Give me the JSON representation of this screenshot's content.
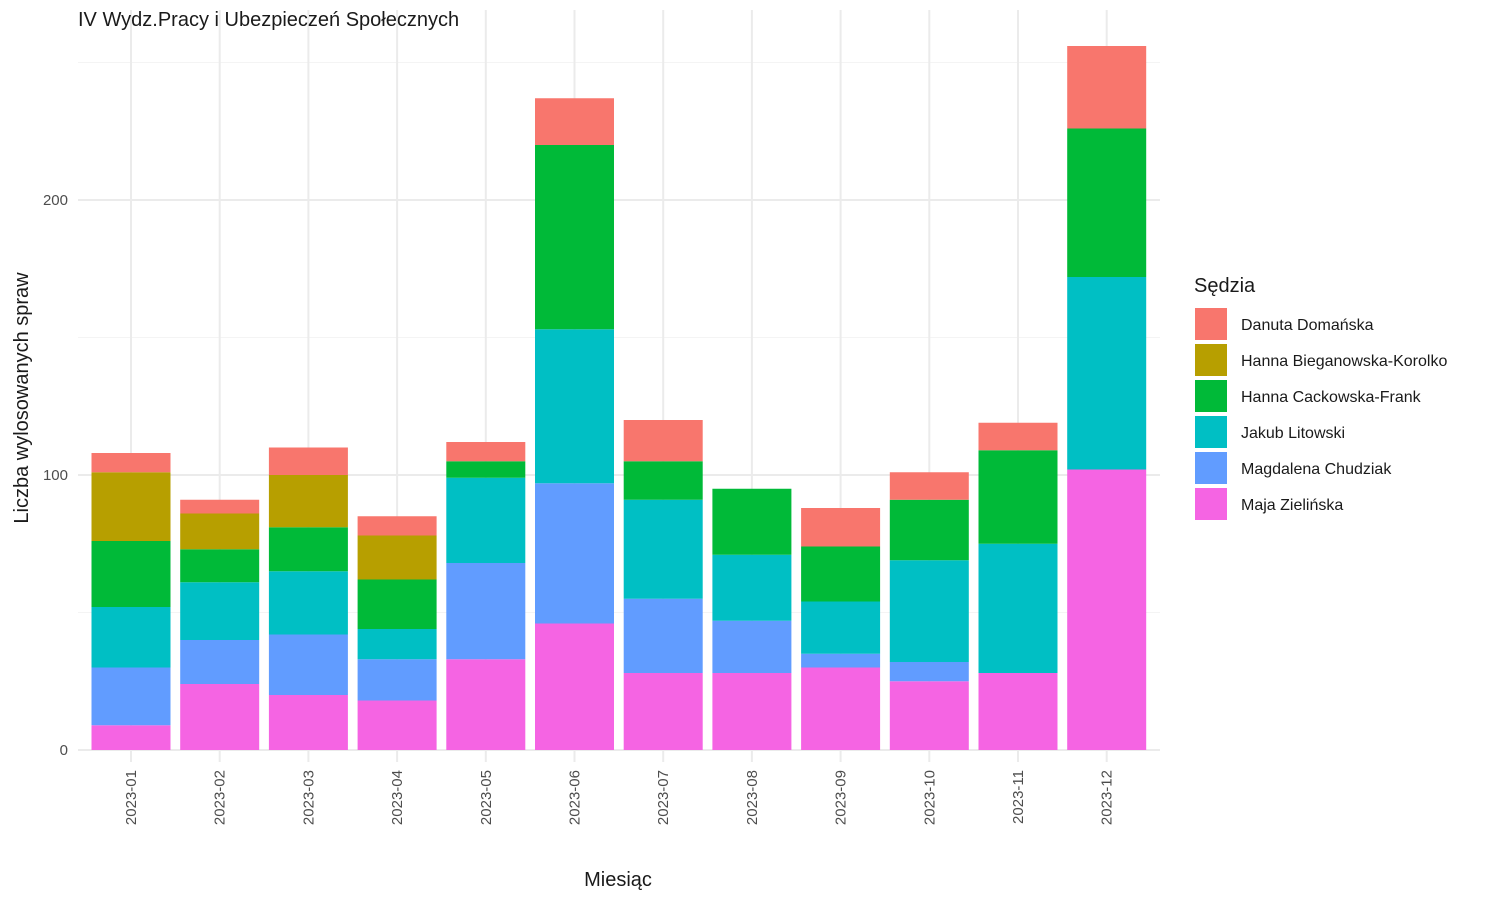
{
  "chart_data": {
    "type": "bar",
    "stacked": true,
    "title": "IV Wydz.Pracy i Ubezpieczeń Społecznych",
    "xlabel": "Miesiąc",
    "ylabel": "Liczba wylosowanych spraw",
    "ylim": [
      0,
      262
    ],
    "yticks": [
      0,
      100,
      200
    ],
    "grid": true,
    "legend_title": "Sędzia",
    "legend_position": "right",
    "categories": [
      "2023-01",
      "2023-02",
      "2023-03",
      "2023-04",
      "2023-05",
      "2023-06",
      "2023-07",
      "2023-08",
      "2023-09",
      "2023-10",
      "2023-11",
      "2023-12"
    ],
    "series": [
      {
        "name": "Danuta Domańska",
        "color": "#F8766D",
        "values": [
          7,
          5,
          10,
          7,
          7,
          17,
          15,
          0,
          14,
          10,
          10,
          30
        ]
      },
      {
        "name": "Hanna Bieganowska-Korolko",
        "color": "#B79F00",
        "values": [
          25,
          13,
          19,
          16,
          0,
          0,
          0,
          0,
          0,
          0,
          0,
          0
        ]
      },
      {
        "name": "Hanna Cackowska-Frank",
        "color": "#00BA38",
        "values": [
          24,
          12,
          16,
          18,
          6,
          67,
          14,
          24,
          20,
          22,
          34,
          54
        ]
      },
      {
        "name": "Jakub Litowski",
        "color": "#00BFC4",
        "values": [
          22,
          21,
          23,
          11,
          31,
          56,
          36,
          24,
          19,
          37,
          47,
          70
        ]
      },
      {
        "name": "Magdalena Chudziak",
        "color": "#619CFF",
        "values": [
          21,
          16,
          22,
          15,
          35,
          51,
          27,
          19,
          5,
          7,
          0,
          0
        ]
      },
      {
        "name": "Maja Zielińska",
        "color": "#F564E3",
        "values": [
          9,
          24,
          20,
          18,
          33,
          46,
          28,
          28,
          30,
          25,
          28,
          102
        ]
      }
    ]
  }
}
